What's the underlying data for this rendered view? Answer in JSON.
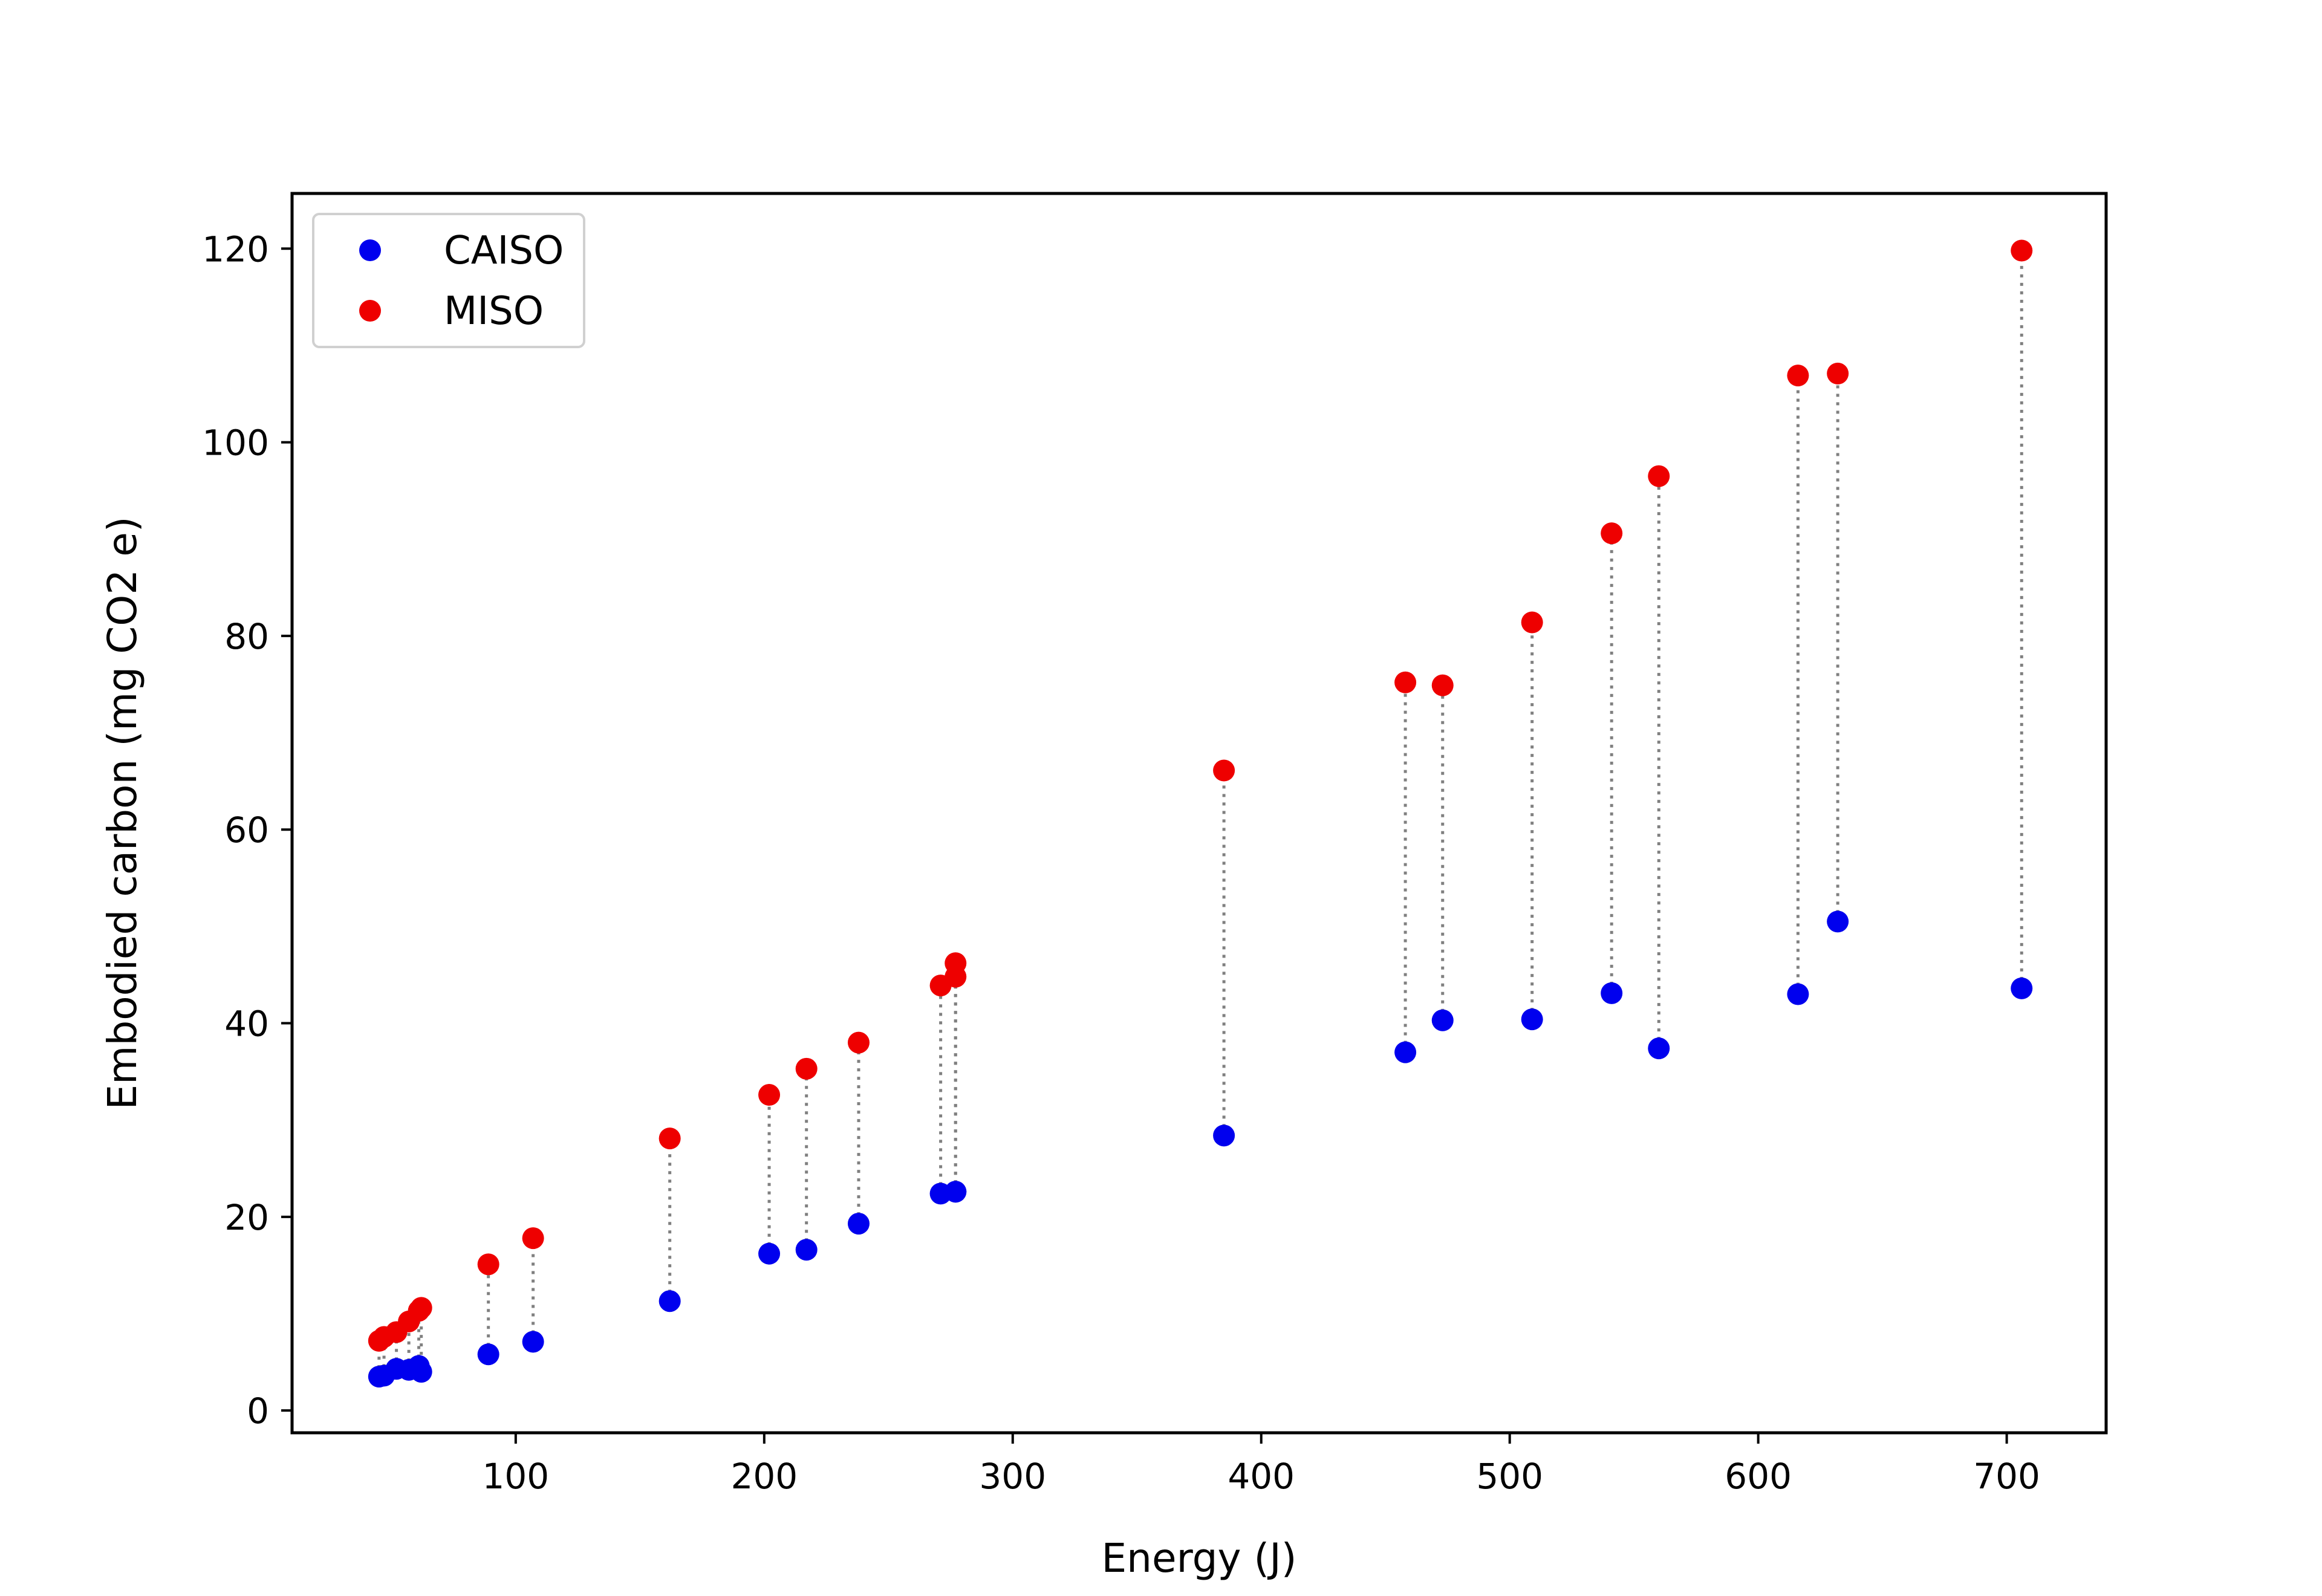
{
  "chart_data": {
    "type": "scatter",
    "title": "",
    "xlabel": "Energy (J)",
    "ylabel": "Embodied carbon (mg CO2 e)",
    "xlim": [
      10,
      740
    ],
    "ylim": [
      -2.3,
      125.7
    ],
    "xticks": [
      100,
      200,
      300,
      400,
      500,
      600,
      700
    ],
    "yticks": [
      0,
      20,
      40,
      60,
      80,
      100,
      120
    ],
    "grid": false,
    "legend_position": "top-left",
    "connector_color": "#808080",
    "x": [
      45,
      47,
      52,
      57,
      61,
      62,
      89,
      107,
      162,
      202,
      217,
      238,
      271,
      277,
      277,
      385,
      458,
      473,
      509,
      541,
      560,
      616,
      632,
      706
    ],
    "series": [
      {
        "name": "CAISO",
        "color": "#0000ee",
        "values": [
          3.5,
          3.6,
          4.3,
          4.2,
          4.6,
          4.0,
          5.8,
          7.1,
          11.3,
          16.2,
          16.6,
          19.3,
          22.4,
          22.6,
          22.6,
          28.4,
          37.0,
          40.3,
          40.4,
          43.1,
          37.4,
          43.0,
          50.5,
          43.6
        ]
      },
      {
        "name": "MISO",
        "color": "#ee0000",
        "values": [
          7.2,
          7.6,
          8.1,
          9.2,
          10.3,
          10.6,
          15.1,
          17.8,
          28.1,
          32.6,
          35.3,
          38.0,
          43.9,
          44.8,
          46.2,
          66.1,
          75.2,
          74.9,
          81.4,
          90.6,
          96.5,
          106.9,
          107.1,
          119.8
        ]
      }
    ]
  }
}
